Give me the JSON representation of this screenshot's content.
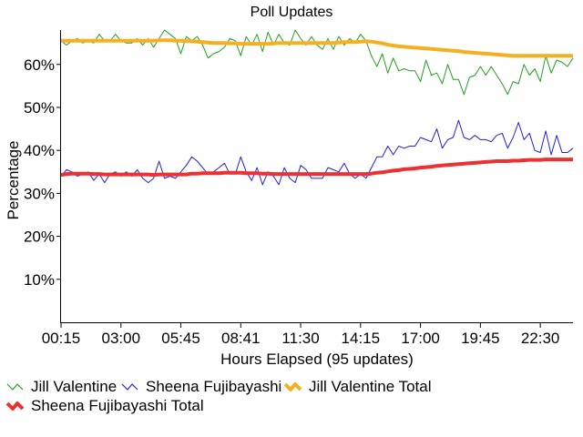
{
  "chart_data": {
    "type": "line",
    "title": "Poll Updates",
    "xlabel": "Hours Elapsed (95 updates)",
    "ylabel": "Percentage",
    "ylim": [
      0,
      68
    ],
    "yticks": [
      10,
      20,
      30,
      40,
      50,
      60
    ],
    "ytick_labels": [
      "10%",
      "20%",
      "30%",
      "40%",
      "50%",
      "60%"
    ],
    "x_range": [
      0,
      94
    ],
    "xticks": [
      0,
      11,
      22,
      33,
      44,
      55,
      66,
      77,
      88
    ],
    "xtick_labels": [
      "00:15",
      "03:00",
      "05:45",
      "08:41",
      "11:30",
      "14:15",
      "17:00",
      "19:45",
      "22:30"
    ],
    "grid": false,
    "legend_position": "bottom",
    "series": [
      {
        "name": "Jill Valentine",
        "color": "#22a022",
        "values": [
          65.5,
          64.5,
          65.5,
          66,
          65,
          65.5,
          65,
          67,
          65.5,
          65.5,
          67,
          65.5,
          65,
          65,
          66,
          64.5,
          66,
          64,
          66,
          68,
          67,
          66,
          62.5,
          66.5,
          65.5,
          66.5,
          64.5,
          61.5,
          62.5,
          63,
          64,
          66,
          65.5,
          62,
          66.5,
          64.5,
          67,
          63,
          67.5,
          64.5,
          67,
          65,
          64.5,
          68,
          66,
          64.5,
          66.5,
          64.5,
          63.5,
          66,
          63.5,
          66.5,
          64.5,
          66,
          65,
          67,
          65.5,
          62,
          59.5,
          62.5,
          58,
          61.5,
          58.5,
          59,
          58.5,
          58.5,
          56,
          61,
          57.5,
          58,
          55.5,
          60,
          56.5,
          56.5,
          53,
          57,
          57.5,
          59.5,
          57.5,
          59.5,
          57.5,
          55.5,
          53,
          56,
          55.5,
          60,
          57.5,
          59,
          56,
          62,
          58,
          61,
          60.5,
          59.5,
          61.5
        ]
      },
      {
        "name": "Sheena Fujibayashi",
        "color": "#2020dd",
        "values": [
          34,
          35.5,
          35,
          34,
          34.5,
          35,
          33,
          34.5,
          32.5,
          34.5,
          35,
          34,
          35,
          34,
          35.5,
          33.5,
          32.5,
          33.5,
          37.5,
          33.5,
          34,
          33.5,
          35,
          36.5,
          38.5,
          37.5,
          36,
          34.5,
          35,
          36,
          37,
          34.5,
          34.5,
          38.5,
          35,
          33,
          36,
          32,
          35,
          34,
          32,
          36,
          33.5,
          32.5,
          36.5,
          35.5,
          33.5,
          33.5,
          33.5,
          36,
          35.5,
          35,
          37,
          34.5,
          33.5,
          34.5,
          33.5,
          36,
          38.5,
          38.5,
          41,
          39,
          41,
          40.5,
          41,
          41,
          43,
          42.5,
          42,
          45,
          40.5,
          42.5,
          43,
          47,
          43,
          42.5,
          43.5,
          42.5,
          42.5,
          42,
          43.5,
          44,
          40.5,
          43,
          46.5,
          42.5,
          44,
          40,
          39.5,
          44.5,
          39,
          43.5,
          39.5,
          39.5,
          40.5
        ]
      },
      {
        "name": "Jill Valentine Total",
        "color": "#f5b020",
        "values": [
          65.5,
          65.5,
          65.5,
          65.5,
          65.5,
          65.5,
          65.5,
          65.5,
          65.5,
          65.5,
          65.5,
          65.5,
          65.5,
          65.5,
          65.5,
          65.5,
          65.5,
          65.5,
          65.6,
          65.6,
          65.6,
          65.5,
          65.5,
          65.4,
          65.4,
          65.3,
          65.2,
          65.1,
          65,
          65,
          65,
          64.9,
          64.9,
          64.8,
          64.8,
          64.8,
          64.8,
          64.8,
          64.8,
          64.9,
          65,
          65,
          65,
          65,
          65,
          65,
          65,
          65,
          65,
          65,
          65,
          65.1,
          65.2,
          65.2,
          65.2,
          65.3,
          65.4,
          65.3,
          65.1,
          64.9,
          64.6,
          64.4,
          64.2,
          64.1,
          64,
          63.9,
          63.8,
          63.7,
          63.6,
          63.5,
          63.4,
          63.3,
          63.2,
          63.1,
          62.9,
          62.8,
          62.7,
          62.6,
          62.5,
          62.4,
          62.3,
          62.2,
          62.1,
          62,
          62,
          62,
          62,
          62,
          62,
          62,
          62,
          62,
          62,
          62,
          62
        ]
      },
      {
        "name": "Sheena Fujibayashi Total",
        "color": "#ee3030",
        "values": [
          34.3,
          34.5,
          34.6,
          34.6,
          34.6,
          34.6,
          34.5,
          34.5,
          34.4,
          34.4,
          34.4,
          34.4,
          34.4,
          34.4,
          34.4,
          34.4,
          34.4,
          34.3,
          34.4,
          34.4,
          34.4,
          34.4,
          34.4,
          34.4,
          34.6,
          34.6,
          34.7,
          34.7,
          34.7,
          34.7,
          34.8,
          34.8,
          34.8,
          34.8,
          34.7,
          34.7,
          34.7,
          34.6,
          34.6,
          34.5,
          34.5,
          34.5,
          34.5,
          34.5,
          34.5,
          34.5,
          34.5,
          34.5,
          34.5,
          34.5,
          34.5,
          34.5,
          34.5,
          34.5,
          34.5,
          34.5,
          34.5,
          34.6,
          34.8,
          34.9,
          35.1,
          35.3,
          35.4,
          35.6,
          35.7,
          35.8,
          36,
          36.1,
          36.2,
          36.4,
          36.5,
          36.6,
          36.7,
          36.8,
          36.9,
          37,
          37.1,
          37.2,
          37.3,
          37.4,
          37.5,
          37.5,
          37.5,
          37.6,
          37.6,
          37.7,
          37.8,
          37.8,
          37.8,
          37.9,
          37.9,
          37.9,
          37.9,
          37.9,
          37.9
        ]
      }
    ]
  }
}
